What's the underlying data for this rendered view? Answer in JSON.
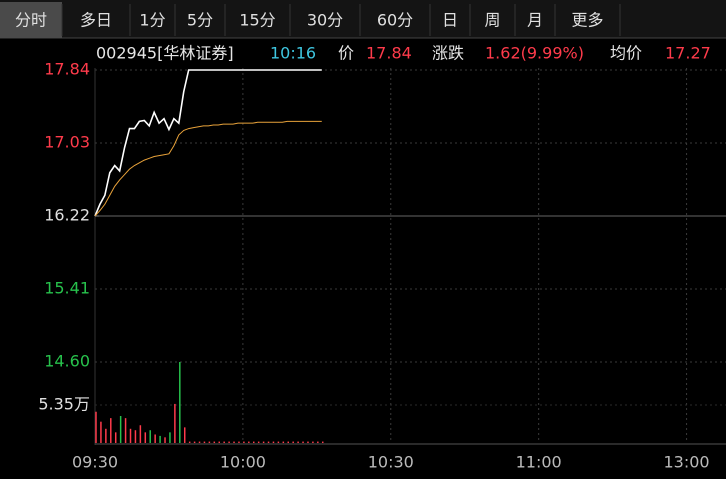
{
  "tabs": [
    "分时",
    "多日",
    "1分",
    "5分",
    "15分",
    "30分",
    "60分",
    "日",
    "周",
    "月",
    "更多"
  ],
  "selected_tab": 0,
  "info": {
    "stock": "002945[华林证券]",
    "time": "10:16",
    "price_label": "价",
    "price": "17.84",
    "change_label": "涨跌",
    "change": "1.62(9.99%)",
    "avg_label": "均价",
    "avg": "17.27"
  },
  "chart_data": [
    {
      "type": "line",
      "prev_close": 16.22,
      "up_color": "#ff3b4b",
      "down_color": "#27c24c",
      "flat_color": "#e0e0e0",
      "x": [
        0,
        1,
        2,
        3,
        4,
        5,
        6,
        7,
        8,
        9,
        10,
        11,
        12,
        13,
        14,
        15,
        16,
        17,
        18,
        19,
        20,
        21,
        22,
        23,
        24,
        25,
        26,
        27,
        28,
        29,
        30,
        31,
        32,
        33,
        34,
        35,
        36,
        37,
        38,
        39,
        40,
        41,
        42,
        43,
        44,
        45,
        46
      ],
      "series": [
        {
          "color": "#ffffff",
          "values": [
            16.22,
            16.35,
            16.45,
            16.7,
            16.78,
            16.72,
            16.98,
            17.19,
            17.19,
            17.27,
            17.28,
            17.22,
            17.37,
            17.25,
            17.3,
            17.18,
            17.3,
            17.25,
            17.6,
            17.84,
            17.84,
            17.84,
            17.84,
            17.84,
            17.84,
            17.84,
            17.84,
            17.84,
            17.84,
            17.84,
            17.84,
            17.84,
            17.84,
            17.84,
            17.84,
            17.84,
            17.84,
            17.84,
            17.84,
            17.84,
            17.84,
            17.84,
            17.84,
            17.84,
            17.84,
            17.84,
            17.84
          ]
        },
        {
          "color": "#e8a23a",
          "values": [
            16.22,
            16.28,
            16.35,
            16.45,
            16.55,
            16.62,
            16.68,
            16.74,
            16.78,
            16.81,
            16.84,
            16.86,
            16.88,
            16.89,
            16.9,
            16.91,
            17.0,
            17.12,
            17.17,
            17.19,
            17.2,
            17.21,
            17.22,
            17.22,
            17.23,
            17.23,
            17.24,
            17.24,
            17.24,
            17.25,
            17.25,
            17.25,
            17.25,
            17.26,
            17.26,
            17.26,
            17.26,
            17.26,
            17.26,
            17.27,
            17.27,
            17.27,
            17.27,
            17.27,
            17.27,
            17.27,
            17.27
          ]
        }
      ],
      "xlim": [
        0,
        128
      ],
      "xticks": [
        {
          "value": 0,
          "label": "09:30"
        },
        {
          "value": 30,
          "label": "10:00"
        },
        {
          "value": 60,
          "label": "10:30"
        },
        {
          "value": 90,
          "label": "11:00"
        },
        {
          "value": 120,
          "label": "13:00"
        }
      ],
      "ylim": [
        14.6,
        17.84
      ],
      "yticks": [
        {
          "value": 17.84,
          "label": "17.84"
        },
        {
          "value": 17.03,
          "label": "17.03"
        },
        16.22,
        15.41,
        {
          "value": 14.6,
          "label": "14.60"
        }
      ],
      "grid": true
    },
    {
      "type": "bar",
      "x": [
        0,
        1,
        2,
        3,
        4,
        5,
        6,
        7,
        8,
        9,
        10,
        11,
        12,
        13,
        14,
        15,
        16,
        17,
        18,
        19,
        20,
        21,
        22,
        23,
        24,
        25,
        26,
        27,
        28,
        29,
        30,
        31,
        32,
        33,
        34,
        35,
        36,
        37,
        38,
        39,
        40,
        41,
        42,
        43,
        44,
        45,
        46
      ],
      "values": [
        4.4,
        3.0,
        2.0,
        3.5,
        1.5,
        3.8,
        3.5,
        2.0,
        1.8,
        2.5,
        1.5,
        1.8,
        1.2,
        1.0,
        0.8,
        1.5,
        5.5,
        11.4,
        2.2,
        0.2,
        0.2,
        0.2,
        0.2,
        0.2,
        0.2,
        0.2,
        0.2,
        0.2,
        0.2,
        0.2,
        0.2,
        0.2,
        0.2,
        0.2,
        0.2,
        0.2,
        0.2,
        0.2,
        0.2,
        0.2,
        0.2,
        0.2,
        0.2,
        0.2,
        0.2,
        0.2,
        0.2
      ],
      "ylim": [
        0,
        11.4
      ],
      "yticks": [
        {
          "value": 5.35,
          "label": "5.35万"
        }
      ]
    }
  ]
}
